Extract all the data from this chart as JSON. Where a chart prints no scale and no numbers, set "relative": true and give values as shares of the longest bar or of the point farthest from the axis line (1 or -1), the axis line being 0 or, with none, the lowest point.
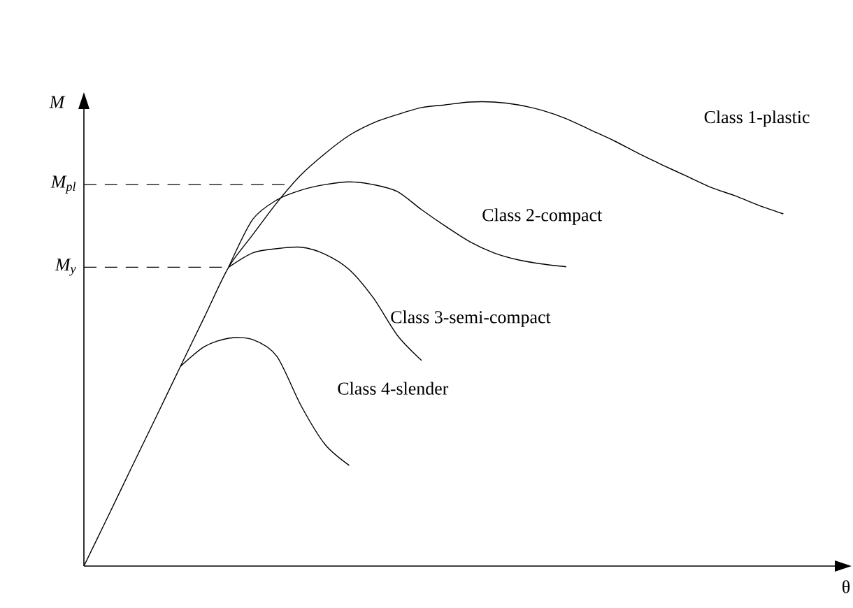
{
  "chart_data": {
    "type": "line",
    "relative": true,
    "xlabel": "θ",
    "ylabel": "M",
    "categories": [
      null,
      null,
      null,
      null,
      null,
      null,
      null,
      null,
      null,
      null,
      null,
      null,
      null,
      null,
      null,
      null,
      null,
      null,
      null,
      null,
      null,
      null,
      null,
      null,
      null,
      null,
      null,
      null,
      null,
      null
    ],
    "series": [
      {
        "name": "Class 1-plastic",
        "color": "#000000",
        "values": [
          0,
          0.107,
          0.215,
          0.322,
          0.43,
          0.537,
          0.644,
          0.714,
          0.783,
          0.843,
          0.889,
          0.928,
          0.955,
          0.973,
          0.988,
          0.994,
          1.0,
          1.0,
          0.994,
          0.982,
          0.964,
          0.94,
          0.916,
          0.889,
          0.864,
          0.84,
          0.816,
          0.798,
          0.777,
          0.759
        ]
      },
      {
        "name": "Class 2-compact",
        "color": "#000000",
        "values": [
          null,
          null,
          null,
          null,
          null,
          null,
          0.644,
          0.747,
          0.789,
          0.81,
          0.822,
          0.828,
          0.822,
          0.807,
          0.768,
          0.732,
          0.699,
          0.675,
          0.66,
          0.651,
          0.645,
          null,
          null,
          null,
          null,
          null,
          null,
          null,
          null,
          null
        ]
      },
      {
        "name": "Class 3-semi-compact",
        "color": "#000000",
        "values": [
          null,
          null,
          null,
          null,
          null,
          null,
          0.644,
          0.675,
          0.684,
          0.687,
          0.672,
          0.639,
          0.578,
          0.497,
          0.443,
          null,
          null,
          null,
          null,
          null,
          null,
          null,
          null,
          null,
          null,
          null,
          null,
          null,
          null,
          null
        ]
      },
      {
        "name": "Class 4-slender",
        "color": "#000000",
        "values": [
          null,
          null,
          null,
          null,
          0.43,
          0.473,
          0.491,
          0.488,
          0.452,
          0.346,
          0.262,
          0.217,
          null,
          null,
          null,
          null,
          null,
          null,
          null,
          null,
          null,
          null,
          null,
          null,
          null,
          null,
          null,
          null,
          null,
          null
        ]
      }
    ],
    "ref_lines": [
      {
        "axis": "y",
        "value": 0.822,
        "label": "M$_{pl}$",
        "line_style": "dashed"
      },
      {
        "axis": "y",
        "value": 0.644,
        "label": "M$_{y}$",
        "line_style": "dashed"
      }
    ]
  }
}
